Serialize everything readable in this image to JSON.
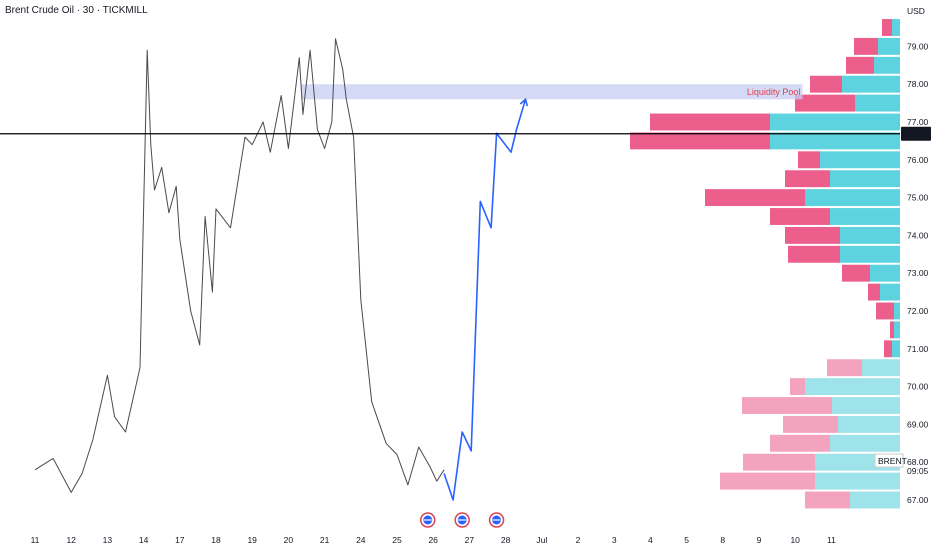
{
  "header": {
    "title": "Brent Crude Oil · 30 · TICKMILL"
  },
  "colors": {
    "price_line": "#4a4a4a",
    "projection": "#2962ff",
    "pool_fill": "#c5cdf3",
    "current_line": "#000000",
    "vp_sell": "#ec5f8c",
    "vp_buy": "#5dd3e0",
    "vp_sell_light": "#f4a3bf",
    "vp_buy_light": "#9fe3ea",
    "badge": "#e0424f"
  },
  "chart_data": {
    "type": "line",
    "title": "Brent Crude Oil · 30 · TICKMILL",
    "currency": "USD",
    "ylim": [
      66.7,
      79.5
    ],
    "y_ticks": [
      67.0,
      68.0,
      69.0,
      70.0,
      71.0,
      72.0,
      73.0,
      74.0,
      75.0,
      76.0,
      77.0,
      78.0,
      79.0
    ],
    "x_ticks": [
      "11",
      "12",
      "13",
      "14",
      "17",
      "18",
      "19",
      "20",
      "21",
      "24",
      "25",
      "26",
      "27",
      "28",
      "Jul",
      "2",
      "3",
      "4",
      "5",
      "8",
      "9",
      "10",
      "11"
    ],
    "grid": false,
    "series": [
      {
        "kind": "price",
        "x": [
          0,
          0.5,
          1.0,
          1.3,
          1.6,
          2.0,
          2.2,
          2.5,
          2.9,
          3.05,
          3.1,
          3.2,
          3.3,
          3.5,
          3.7,
          3.9,
          4.0,
          4.3,
          4.55,
          4.7,
          4.9,
          5.0,
          5.4,
          5.8,
          6.0,
          6.3,
          6.5,
          6.8,
          7.0,
          7.3,
          7.4,
          7.6,
          7.8,
          8.0,
          8.2,
          8.3,
          8.5,
          8.6,
          8.8,
          9.0,
          9.3,
          9.7,
          10.0,
          10.3,
          10.6,
          10.9,
          11.1,
          11.3
        ],
        "y": [
          67.8,
          68.1,
          67.2,
          67.7,
          68.6,
          70.3,
          69.2,
          68.8,
          70.5,
          76.8,
          78.9,
          76.4,
          75.2,
          75.8,
          74.6,
          75.3,
          73.9,
          72.0,
          71.1,
          74.5,
          72.5,
          74.7,
          74.2,
          76.6,
          76.4,
          77.0,
          76.2,
          77.7,
          76.3,
          78.7,
          77.2,
          78.9,
          76.8,
          76.3,
          77.0,
          79.2,
          78.4,
          77.6,
          76.6,
          72.3,
          69.6,
          68.5,
          68.2,
          67.4,
          68.4,
          67.9,
          67.5,
          67.8
        ]
      },
      {
        "kind": "projection",
        "x": [
          11.3,
          11.55,
          11.8,
          12.05,
          12.3,
          12.6,
          12.75,
          13.15,
          13.3,
          13.55
        ],
        "y": [
          67.7,
          67.0,
          68.8,
          68.3,
          74.9,
          74.2,
          76.7,
          76.2,
          76.8,
          77.6
        ]
      }
    ],
    "current_price": "76.69",
    "liquidity_pool": {
      "label": "Liquidity Pool",
      "y_low": 77.6,
      "y_high": 78.0,
      "x_start": 7.35,
      "x_end": 21.2
    },
    "markers": {
      "x": [
        10.85,
        11.8,
        12.75
      ]
    },
    "volume_profile": {
      "levels": [
        67.0,
        67.5,
        68.0,
        68.5,
        69.0,
        69.5,
        70.0,
        70.5,
        71.0,
        71.5,
        72.0,
        72.5,
        73.0,
        73.5,
        74.0,
        74.5,
        75.0,
        75.5,
        76.0,
        76.5,
        77.0,
        77.5,
        78.0,
        78.5,
        79.0,
        79.5
      ],
      "buy": [
        50,
        85,
        85,
        70,
        62,
        68,
        95,
        38,
        8,
        6,
        6,
        20,
        30,
        60,
        60,
        70,
        95,
        70,
        80,
        130,
        130,
        45,
        58,
        26,
        22,
        8
      ],
      "sell": [
        45,
        95,
        72,
        60,
        55,
        90,
        15,
        35,
        8,
        4,
        18,
        12,
        28,
        52,
        55,
        60,
        100,
        45,
        22,
        140,
        120,
        60,
        32,
        28,
        24,
        10
      ]
    },
    "instrument_label": "BRENT",
    "countdown": "09:05"
  }
}
